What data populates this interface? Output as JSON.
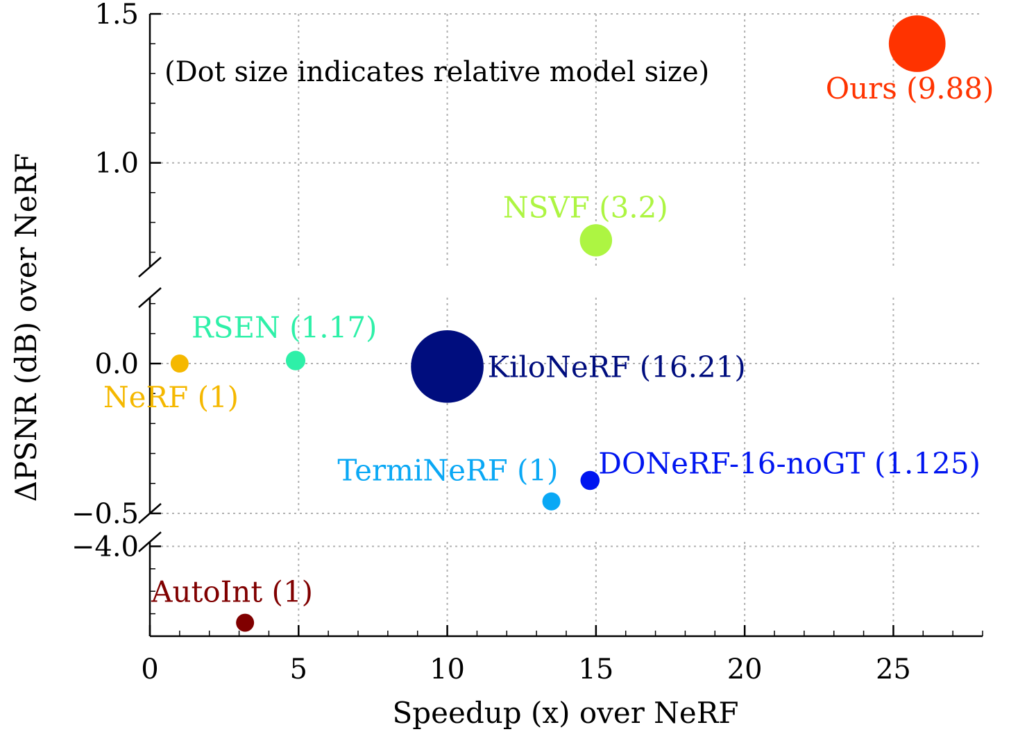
{
  "chart_data": {
    "type": "scatter",
    "note": "(Dot size indicates relative model size)",
    "xlabel": "Speedup (x) over NeRF",
    "ylabel": "ΔPSNR (dB) over NeRF",
    "xlim": [
      0,
      28
    ],
    "x_ticks": [
      "0",
      "5",
      "10",
      "15",
      "20",
      "25"
    ],
    "y_axis_broken": true,
    "y_segments": [
      {
        "ylim": [
          0.65,
          1.5
        ],
        "ticks": [
          "1.0",
          "1.5"
        ]
      },
      {
        "ylim": [
          -0.5,
          0.22
        ],
        "ticks": [
          "−0.5",
          "0.0"
        ]
      },
      {
        "ylim": [
          -4.2,
          -3.99
        ],
        "ticks": [
          "−4.0"
        ]
      }
    ],
    "grid": true,
    "points": [
      {
        "label": "NeRF (1)",
        "x": 1.0,
        "y": 0.0,
        "model_size": 1,
        "color": "#f5b800"
      },
      {
        "label": "RSEN (1.17)",
        "x": 4.9,
        "y": 0.01,
        "model_size": 1.17,
        "color": "#2ef0a8"
      },
      {
        "label": "KiloNeRF (16.21)",
        "x": 10.0,
        "y": -0.01,
        "model_size": 16.21,
        "color": "#000d7e"
      },
      {
        "label": "TermiNeRF (1)",
        "x": 13.5,
        "y": -0.46,
        "model_size": 1,
        "color": "#0aa8f5"
      },
      {
        "label": "DONeRF-16-noGT (1.125)",
        "x": 14.8,
        "y": -0.39,
        "model_size": 1.125,
        "color": "#0015f0"
      },
      {
        "label": "NSVF (3.2)",
        "x": 15.0,
        "y": 0.74,
        "model_size": 3.2,
        "color": "#adf542"
      },
      {
        "label": "Ours (9.88)",
        "x": 25.8,
        "y": 1.4,
        "model_size": 9.88,
        "color": "#ff3300"
      },
      {
        "label": "AutoInt (1)",
        "x": 3.2,
        "y": -4.17,
        "model_size": 1,
        "color": "#800000"
      }
    ]
  }
}
